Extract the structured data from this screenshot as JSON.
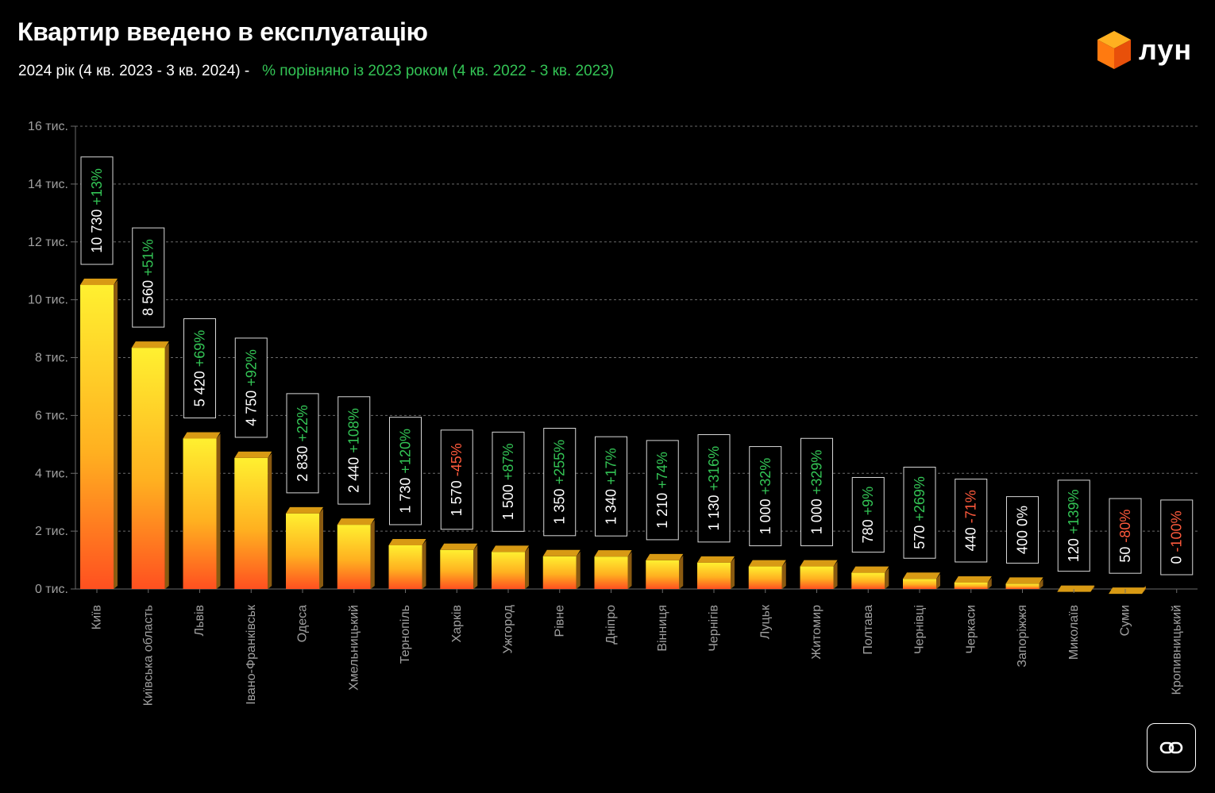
{
  "title": "Квартир введено в експлуатацію",
  "subtitle": {
    "part1": "2024 рік (4 кв. 2023 - 3 кв. 2024) -",
    "part2": "% порівняно із 2023 роком (4 кв. 2022 - 3 кв. 2023)"
  },
  "logo": {
    "text": "лун",
    "icon": "cube-logo-icon"
  },
  "link_button": {
    "icon": "link-icon"
  },
  "colors": {
    "background": "#000000",
    "bar_top": "#fff030",
    "bar_bottom": "#ff5020",
    "bar_cap": "#d89a14",
    "bar_side": "#8a5a10",
    "positive": "#33c455",
    "negative": "#ff5a3c",
    "neutral": "#ffffff",
    "axis_text": "#a0a0a0",
    "grid": "#6a6a6a"
  },
  "chart_data": {
    "type": "bar",
    "ylim": [
      0,
      16000
    ],
    "yticks": [
      {
        "value": 0,
        "label": "0 тис."
      },
      {
        "value": 2000,
        "label": "2 тис."
      },
      {
        "value": 4000,
        "label": "4 тис."
      },
      {
        "value": 6000,
        "label": "6 тис."
      },
      {
        "value": 8000,
        "label": "8 тис."
      },
      {
        "value": 10000,
        "label": "10 тис."
      },
      {
        "value": 12000,
        "label": "12 тис."
      },
      {
        "value": 14000,
        "label": "14 тис."
      },
      {
        "value": 16000,
        "label": "16 тис."
      }
    ],
    "grid": true,
    "categories": [
      "Київ",
      "Київська область",
      "Львів",
      "Івано-Франківськ",
      "Одеса",
      "Хмельницький",
      "Тернопіль",
      "Харків",
      "Ужгород",
      "Рівне",
      "Дніпро",
      "Вінниця",
      "Чернігів",
      "Луцьк",
      "Житомир",
      "Полтава",
      "Чернівці",
      "Черкаси",
      "Запоріжжя",
      "Миколаїв",
      "Суми",
      "Кропивницький"
    ],
    "values": [
      10730,
      8560,
      5420,
      4750,
      2830,
      2440,
      1730,
      1570,
      1500,
      1350,
      1340,
      1210,
      1130,
      1000,
      1000,
      780,
      570,
      440,
      400,
      120,
      50,
      0
    ],
    "value_labels": [
      "10 730",
      "8 560",
      "5 420",
      "4 750",
      "2 830",
      "2 440",
      "1 730",
      "1 570",
      "1 500",
      "1 350",
      "1 340",
      "1 210",
      "1 130",
      "1 000",
      "1 000",
      "780",
      "570",
      "440",
      "400",
      "120",
      "50",
      "0"
    ],
    "change_labels": [
      "+13%",
      "+51%",
      "+69%",
      "+92%",
      "+22%",
      "+108%",
      "+120%",
      "-45%",
      "+87%",
      "+255%",
      "+17%",
      "+74%",
      "+316%",
      "+32%",
      "+329%",
      "+9%",
      "+269%",
      "-71%",
      "0%",
      "+139%",
      "-80%",
      "-100%"
    ]
  }
}
